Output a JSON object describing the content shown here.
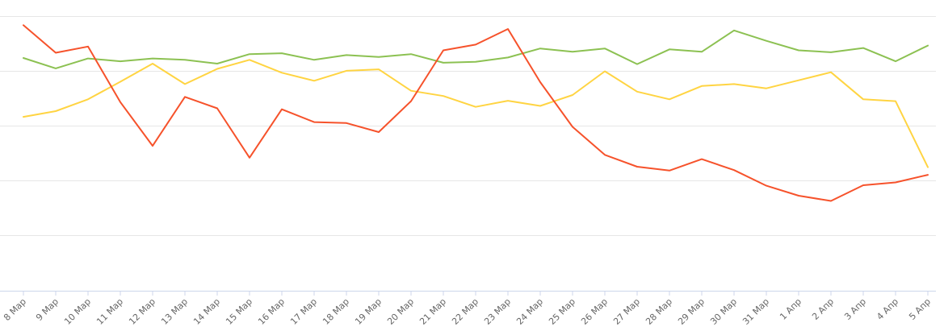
{
  "chart_data": {
    "type": "line",
    "categories": [
      "8 Мар",
      "9 Мар",
      "10 Мар",
      "11 Мар",
      "12 Мар",
      "13 Мар",
      "14 Мар",
      "15 Мар",
      "16 Мар",
      "17 Мар",
      "18 Мар",
      "19 Мар",
      "20 Мар",
      "21 Мар",
      "22 Мар",
      "23 Мар",
      "24 Мар",
      "25 Мар",
      "26 Мар",
      "27 Мар",
      "28 Мар",
      "29 Мар",
      "30 Мар",
      "31 Мар",
      "1 Апр",
      "2 Апр",
      "3 Апр",
      "4 Апр",
      "5 Апр"
    ],
    "series": [
      {
        "color": "#8cc152",
        "values": [
          3.91,
          3.69,
          3.9,
          3.84,
          3.9,
          3.87,
          3.79,
          3.99,
          4.01,
          3.87,
          3.97,
          3.93,
          3.99,
          3.81,
          3.83,
          3.92,
          4.11,
          4.04,
          4.11,
          3.78,
          4.09,
          4.04,
          4.49,
          4.27,
          4.07,
          4.03,
          4.12,
          3.84,
          4.17
        ]
      },
      {
        "color": "#ffd442",
        "values": [
          2.67,
          2.79,
          3.04,
          3.41,
          3.79,
          3.36,
          3.68,
          3.87,
          3.6,
          3.43,
          3.64,
          3.67,
          3.22,
          3.11,
          2.88,
          3.01,
          2.9,
          3.13,
          3.63,
          3.2,
          3.04,
          3.32,
          3.36,
          3.27,
          3.44,
          3.61,
          3.04,
          3.0,
          1.61
        ]
      },
      {
        "color": "#f6522b",
        "values": [
          4.6,
          4.02,
          4.15,
          2.98,
          2.06,
          3.09,
          2.85,
          1.81,
          2.83,
          2.56,
          2.54,
          2.35,
          3.0,
          4.07,
          4.19,
          4.52,
          3.4,
          2.46,
          1.87,
          1.62,
          1.54,
          1.78,
          1.55,
          1.22,
          1.01,
          0.9,
          1.23,
          1.29,
          1.45
        ]
      }
    ],
    "ylim": [
      -0.99,
      5.13
    ],
    "grid": true,
    "legend": "none"
  }
}
